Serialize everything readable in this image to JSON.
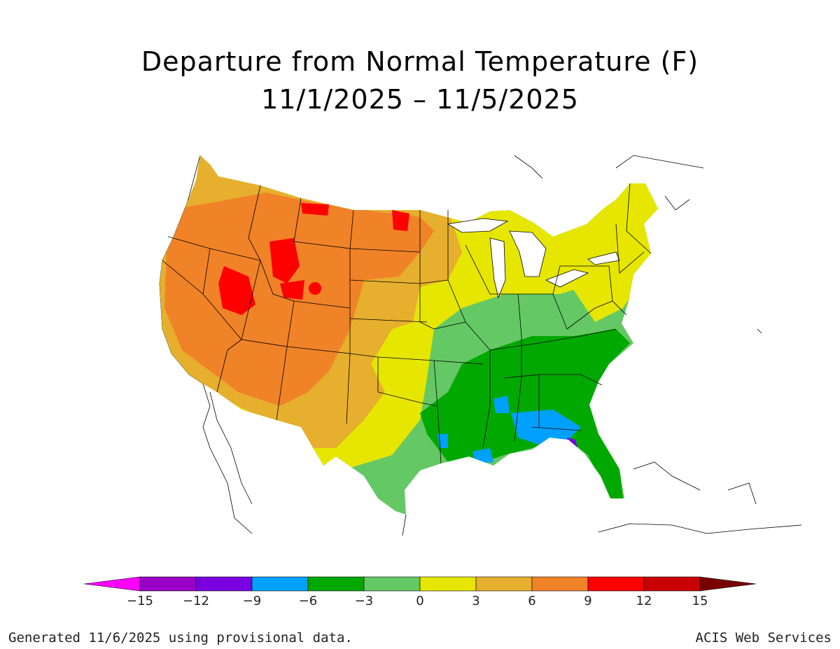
{
  "title": "Departure from Normal Temperature (F)",
  "subtitle": "11/1/2025 – 11/5/2025",
  "legend": {
    "ticks": [
      "−15",
      "−12",
      "−9",
      "−6",
      "−3",
      "0",
      "3",
      "6",
      "9",
      "12",
      "15"
    ],
    "bins": [
      {
        "range": "< -15",
        "color": "#ff00ff"
      },
      {
        "range": "-15 to -12",
        "color": "#9b00c8"
      },
      {
        "range": "-12 to -9",
        "color": "#7a00e0"
      },
      {
        "range": "-9 to -6",
        "color": "#00a0ff"
      },
      {
        "range": "-6 to -3",
        "color": "#00a800"
      },
      {
        "range": "-3 to 0",
        "color": "#64c864"
      },
      {
        "range": "0 to 3",
        "color": "#e6e600"
      },
      {
        "range": "3 to 6",
        "color": "#e6af2d"
      },
      {
        "range": "6 to 9",
        "color": "#f08228"
      },
      {
        "range": "9 to 12",
        "color": "#ff0000"
      },
      {
        "range": "12 to 15",
        "color": "#c80000"
      },
      {
        "range": "> 15",
        "color": "#780000"
      }
    ]
  },
  "footer": {
    "left": "Generated 11/6/2025 using provisional data.",
    "right": "ACIS Web Services"
  }
}
